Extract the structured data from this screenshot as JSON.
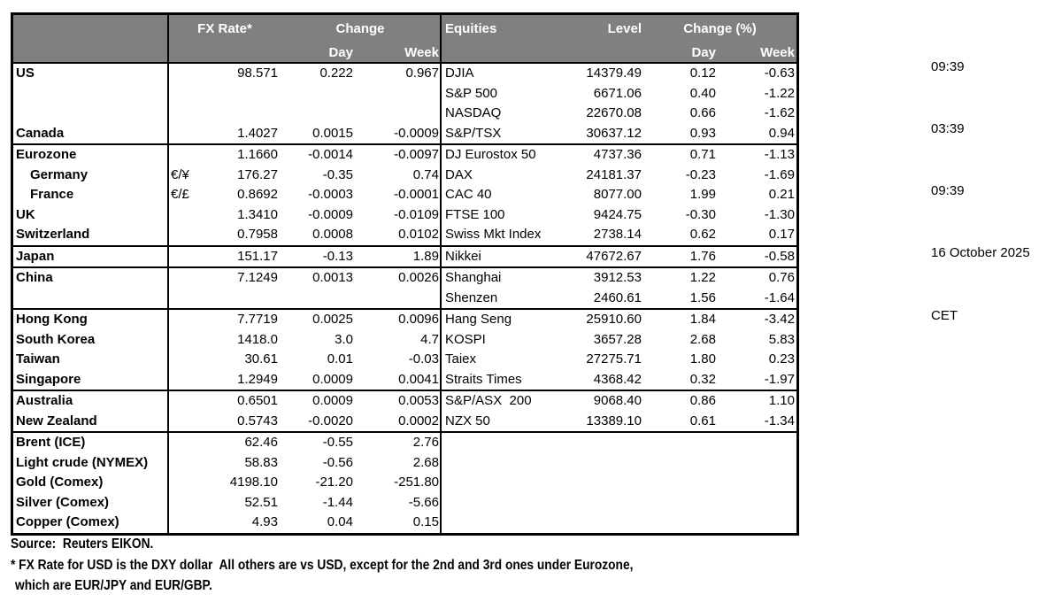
{
  "colors": {
    "header_bg": "#808080",
    "header_text": "#ffffff",
    "border": "#000000",
    "text": "#000000",
    "background": "#ffffff"
  },
  "clock": {
    "lines": [
      "09:39",
      "03:39",
      "09:39",
      "16 October 2025",
      "CET"
    ]
  },
  "table": {
    "header": {
      "fx_rate": "FX Rate*",
      "change": "Change",
      "fx_day": "Day",
      "fx_week": "Week",
      "equities": "Equities",
      "level": "Level",
      "change_pct": "Change (%)",
      "eq_day": "Day",
      "eq_week": "Week"
    },
    "sections": [
      {
        "rows": [
          {
            "name": "US",
            "symbol": "",
            "rate": "98.571",
            "day": "0.222",
            "week": "0.967",
            "eq_name": "DJIA",
            "level": "14379.49",
            "eq_day": "0.12",
            "eq_week": "-0.63"
          },
          {
            "name": "",
            "symbol": "",
            "rate": "",
            "day": "",
            "week": "",
            "eq_name": "S&P 500",
            "level": "6671.06",
            "eq_day": "0.40",
            "eq_week": "-1.22"
          },
          {
            "name": "",
            "symbol": "",
            "rate": "",
            "day": "",
            "week": "",
            "eq_name": "NASDAQ",
            "level": "22670.08",
            "eq_day": "0.66",
            "eq_week": "-1.62"
          },
          {
            "name": "Canada",
            "symbol": "",
            "rate": "1.4027",
            "day": "0.0015",
            "week": "-0.0009",
            "eq_name": "S&P/TSX",
            "level": "30637.12",
            "eq_day": "0.93",
            "eq_week": "0.94"
          }
        ]
      },
      {
        "rows": [
          {
            "name": "Eurozone",
            "symbol": "",
            "rate": "1.1660",
            "day": "-0.0014",
            "week": "-0.0097",
            "eq_name": "DJ Eurostox 50",
            "level": "4737.36",
            "eq_day": "0.71",
            "eq_week": "-1.13"
          },
          {
            "name": "Germany",
            "indent": true,
            "symbol": "€/¥",
            "rate": "176.27",
            "day": "-0.35",
            "week": "0.74",
            "eq_name": "DAX",
            "level": "24181.37",
            "eq_day": "-0.23",
            "eq_week": "-1.69"
          },
          {
            "name": "France",
            "indent": true,
            "symbol": "€/£",
            "rate": "0.8692",
            "day": "-0.0003",
            "week": "-0.0001",
            "eq_name": "CAC 40",
            "level": "8077.00",
            "eq_day": "1.99",
            "eq_week": "0.21"
          },
          {
            "name": "UK",
            "symbol": "",
            "rate": "1.3410",
            "day": "-0.0009",
            "week": "-0.0109",
            "eq_name": "FTSE 100",
            "level": "9424.75",
            "eq_day": "-0.30",
            "eq_week": "-1.30"
          },
          {
            "name": "Switzerland",
            "symbol": "",
            "rate": "0.7958",
            "day": "0.0008",
            "week": "0.0102",
            "eq_name": "Swiss Mkt Index",
            "level": "2738.14",
            "eq_day": "0.62",
            "eq_week": "0.17"
          }
        ]
      },
      {
        "rows": [
          {
            "name": "Japan",
            "symbol": "",
            "rate": "151.17",
            "day": "-0.13",
            "week": "1.89",
            "eq_name": "Nikkei",
            "level": "47672.67",
            "eq_day": "1.76",
            "eq_week": "-0.58"
          }
        ]
      },
      {
        "rows": [
          {
            "name": "China",
            "symbol": "",
            "rate": "7.1249",
            "day": "0.0013",
            "week": "0.0026",
            "eq_name": "Shanghai",
            "level": "3912.53",
            "eq_day": "1.22",
            "eq_week": "0.76"
          },
          {
            "name": "",
            "symbol": "",
            "rate": "",
            "day": "",
            "week": "",
            "eq_name": "Shenzen",
            "level": "2460.61",
            "eq_day": "1.56",
            "eq_week": "-1.64"
          }
        ]
      },
      {
        "rows": [
          {
            "name": "Hong Kong",
            "symbol": "",
            "rate": "7.7719",
            "day": "0.0025",
            "week": "0.0096",
            "eq_name": "Hang Seng",
            "level": "25910.60",
            "eq_day": "1.84",
            "eq_week": "-3.42"
          },
          {
            "name": "South Korea",
            "symbol": "",
            "rate": "1418.0",
            "day": "3.0",
            "week": "4.7",
            "eq_name": "KOSPI",
            "level": "3657.28",
            "eq_day": "2.68",
            "eq_week": "5.83"
          },
          {
            "name": "Taiwan",
            "symbol": "",
            "rate": "30.61",
            "day": "0.01",
            "week": "-0.03",
            "eq_name": "Taiex",
            "level": "27275.71",
            "eq_day": "1.80",
            "eq_week": "0.23"
          },
          {
            "name": "Singapore",
            "symbol": "",
            "rate": "1.2949",
            "day": "0.0009",
            "week": "0.0041",
            "eq_name": "Straits Times",
            "level": "4368.42",
            "eq_day": "0.32",
            "eq_week": "-1.97"
          }
        ]
      },
      {
        "rows": [
          {
            "name": "Australia",
            "symbol": "",
            "rate": "0.6501",
            "day": "0.0009",
            "week": "0.0053",
            "eq_name": "S&P/ASX  200",
            "level": "9068.40",
            "eq_day": "0.86",
            "eq_week": "1.10"
          },
          {
            "name": "New Zealand",
            "symbol": "",
            "rate": "0.5743",
            "day": "-0.0020",
            "week": "0.0002",
            "eq_name": "NZX 50",
            "level": "13389.10",
            "eq_day": "0.61",
            "eq_week": "-1.34"
          }
        ]
      },
      {
        "rows": [
          {
            "name": "Brent (ICE)",
            "symbol": "",
            "rate": "62.46",
            "day": "-0.55",
            "week": "2.76",
            "eq_name": "",
            "level": "",
            "eq_day": "",
            "eq_week": ""
          },
          {
            "name": "Light crude (NYMEX)",
            "symbol": "",
            "rate": "58.83",
            "day": "-0.56",
            "week": "2.68",
            "eq_name": "",
            "level": "",
            "eq_day": "",
            "eq_week": ""
          },
          {
            "name": "Gold (Comex)",
            "symbol": "",
            "rate": "4198.10",
            "day": "-21.20",
            "week": "-251.80",
            "eq_name": "",
            "level": "",
            "eq_day": "",
            "eq_week": ""
          },
          {
            "name": "Silver (Comex)",
            "symbol": "",
            "rate": "52.51",
            "day": "-1.44",
            "week": "-5.66",
            "eq_name": "",
            "level": "",
            "eq_day": "",
            "eq_week": ""
          },
          {
            "name": "Copper (Comex)",
            "symbol": "",
            "rate": "4.93",
            "day": "0.04",
            "week": "0.15",
            "eq_name": "",
            "level": "",
            "eq_day": "",
            "eq_week": ""
          }
        ]
      }
    ]
  },
  "footer": {
    "source": "Source:  Reuters EIKON.",
    "note_line1": "* FX Rate for USD is the DXY dollar  All others are vs USD, except for the 2nd and 3rd ones under Eurozone,",
    "note_line2": "which are EUR/JPY and EUR/GBP."
  }
}
